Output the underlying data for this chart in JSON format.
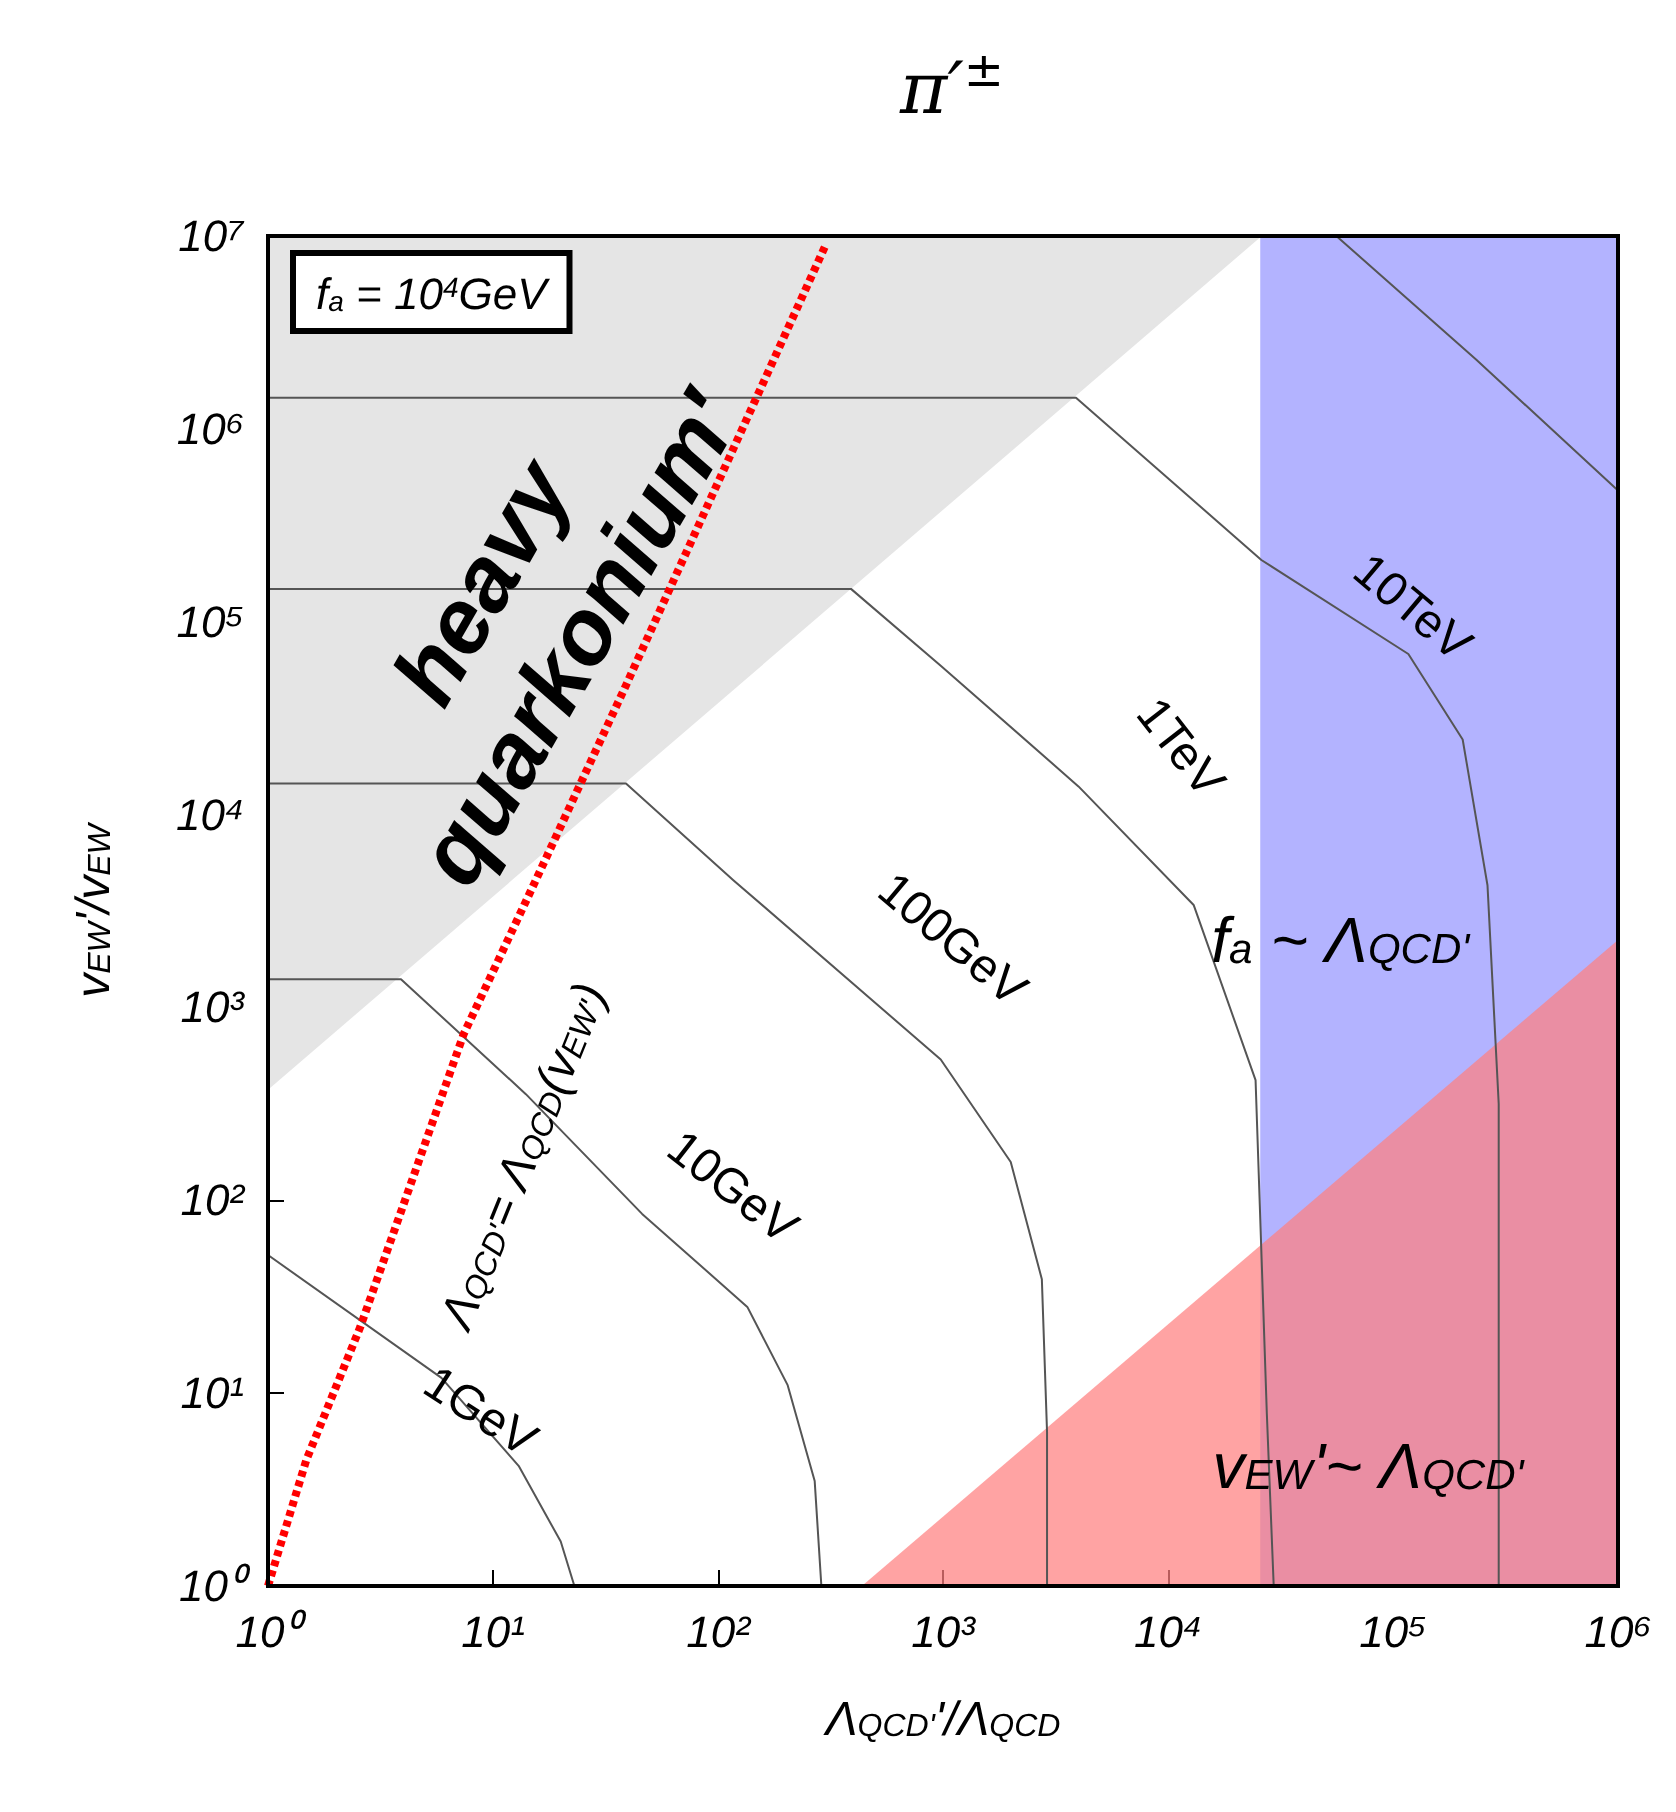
{
  "chart_data": {
    "type": "line",
    "title": "π′$^{±}$",
    "xlabel": "Λ$_{QCD'}$'/Λ$_{QCD}$",
    "ylabel": "v$_{EW}$'/v$_{EW}$",
    "log": "xy",
    "xlim": [
      1,
      1000000
    ],
    "ylim": [
      1,
      10000000
    ],
    "xticks": [
      {
        "value": 1,
        "label": "10⁰"
      },
      {
        "value": 10,
        "label": "10¹"
      },
      {
        "value": 100,
        "label": "10²"
      },
      {
        "value": 1000,
        "label": "10³"
      },
      {
        "value": 10000,
        "label": "10⁴"
      },
      {
        "value": 100000,
        "label": "10⁵"
      },
      {
        "value": 1000000,
        "label": "10⁶"
      }
    ],
    "yticks": [
      {
        "value": 1,
        "label": "10⁰"
      },
      {
        "value": 10,
        "label": "10¹"
      },
      {
        "value": 100,
        "label": "10²"
      },
      {
        "value": 1000,
        "label": "10³"
      },
      {
        "value": 10000,
        "label": "10⁴"
      },
      {
        "value": 100000,
        "label": "10⁵"
      },
      {
        "value": 1000000,
        "label": "10⁶"
      },
      {
        "value": 10000000,
        "label": "10⁷"
      }
    ],
    "marker": "none",
    "line_style": "solid",
    "bands": [
      {
        "axis": "x",
        "from": 25700,
        "to": 1000000,
        "label": "f$_{a}$ ~ Λ$_{QCD'}$",
        "color": "#b3b3ff"
      }
    ],
    "annotations": [
      "f$_{a}$ = 10$^{4}$GeV",
      "1GeV",
      "10GeV",
      "100GeV",
      "1TeV",
      "10TeV",
      "heavy\nquarkonium′",
      "Λ$_{QCD'}$= Λ$_{QCD}$(v$_{EW'}$)",
      "v$_{EW}$'~ Λ$_{QCD'}$"
    ],
    "series": [
      {
        "type": "area",
        "color": "#e5e5e5",
        "x": [
          1,
          25700
        ],
        "values": [
          380,
          10000000
        ]
      },
      {
        "type": "area",
        "color": "#ff8080",
        "x": [
          436,
          1000000
        ],
        "values": [
          1,
          2240
        ]
      },
      {
        "type": "line",
        "color": "#555555",
        "x": [
          1,
          5.9,
          13,
          20,
          23
        ],
        "values": [
          52,
          12,
          4.2,
          1.7,
          1
        ]
      },
      {
        "type": "line",
        "color": "#555555",
        "x": [
          1,
          3.9,
          14,
          46,
          135,
          204,
          269,
          288
        ],
        "values": [
          1400,
          1400,
          355,
          85,
          28,
          11,
          3.5,
          1
        ]
      },
      {
        "type": "line",
        "color": "#555555",
        "x": [
          1,
          39,
          117,
          977,
          2000,
          2750,
          2900,
          2900
        ],
        "values": [
          14500,
          14500,
          4570,
          537,
          158,
          39,
          6.3,
          1
        ]
      },
      {
        "type": "line",
        "color": "#555555",
        "x": [
          1,
          390,
          980,
          4000,
          13000,
          24500,
          27500,
          29500
        ],
        "values": [
          148000,
          148000,
          59000,
          14000,
          3400,
          420,
          7.8,
          1
        ]
      },
      {
        "type": "line",
        "color": "#555555",
        "x": [
          1,
          3900,
          26000,
          117000,
          204000,
          263000,
          295000,
          295000
        ],
        "values": [
          1450000,
          1450000,
          209000,
          68000,
          24500,
          4300,
          316,
          1
        ]
      },
      {
        "type": "line",
        "color": "#555555",
        "x": [
          56000,
          234000,
          1000000
        ],
        "values": [
          10000000,
          2290000,
          479000
        ]
      },
      {
        "type": "line",
        "color": "#ff0000",
        "line_style": "dashed",
        "x": [
          1,
          1.48,
          2.57,
          7.4,
          15.5,
          39,
          300
        ],
        "values": [
          1,
          4.5,
          22,
          725,
          4570,
          46800,
          8900000
        ]
      }
    ]
  }
}
